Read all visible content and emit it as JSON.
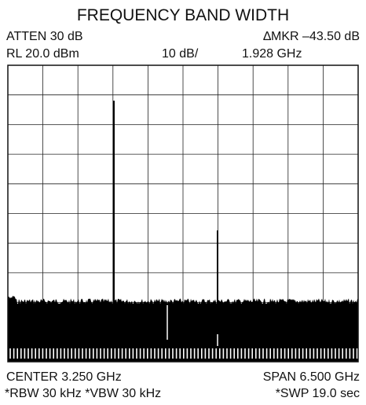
{
  "title": "FREQUENCY BAND WIDTH",
  "header": {
    "atten": "ATTEN  30 dB",
    "marker": "∆MKR –43.50 dB",
    "ref_level": "RL 20.0 dBm",
    "scale": "10 dB/",
    "marker_freq": "1.928 GHz"
  },
  "footer": {
    "center": "CENTER  3.250 GHz",
    "span": "SPAN 6.500 GHz",
    "rbw_vbw": "*RBW 30 kHz  *VBW 30 kHz",
    "sweep": "*SWP 19.0 sec"
  }
}
